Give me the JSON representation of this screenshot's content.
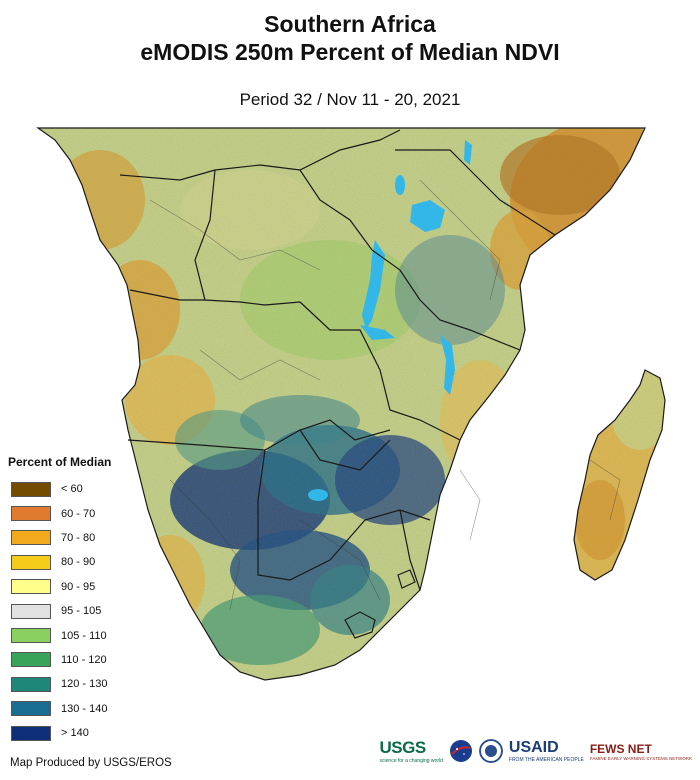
{
  "header": {
    "title_line1": "Southern Africa",
    "title_line2": "eMODIS 250m Percent of Median NDVI",
    "period": "Period 32 / Nov 11 - 20, 2021"
  },
  "legend": {
    "title": "Percent of Median",
    "items": [
      {
        "label": "< 60",
        "color": "#734c00"
      },
      {
        "label": "60 - 70",
        "color": "#e07a2e"
      },
      {
        "label": "70 - 80",
        "color": "#f2a91e"
      },
      {
        "label": "80 - 90",
        "color": "#f5cc1a"
      },
      {
        "label": "90 - 95",
        "color": "#fefe8a"
      },
      {
        "label": "95 - 105",
        "color": "#e1e1e1"
      },
      {
        "label": "105 - 110",
        "color": "#8ad060"
      },
      {
        "label": "110 - 120",
        "color": "#37a45a"
      },
      {
        "label": "120 - 130",
        "color": "#1f877a"
      },
      {
        "label": "130 - 140",
        "color": "#1a6e94"
      },
      {
        "label": "> 140",
        "color": "#0f2e78"
      }
    ]
  },
  "footer": {
    "credit": "Map Produced by USGS/EROS",
    "logos": {
      "usgs": "USGS",
      "usgs_tagline": "science for a changing world",
      "usaid": "USAID",
      "usaid_tagline": "FROM THE AMERICAN PEOPLE",
      "fews": "FEWS NET",
      "fews_tagline": "FAMINE EARLY WARNING SYSTEMS NETWORK"
    }
  },
  "colors": {
    "water": "#33b7e8",
    "border": "#1a1a1a",
    "land_base": "#c7d48f"
  }
}
